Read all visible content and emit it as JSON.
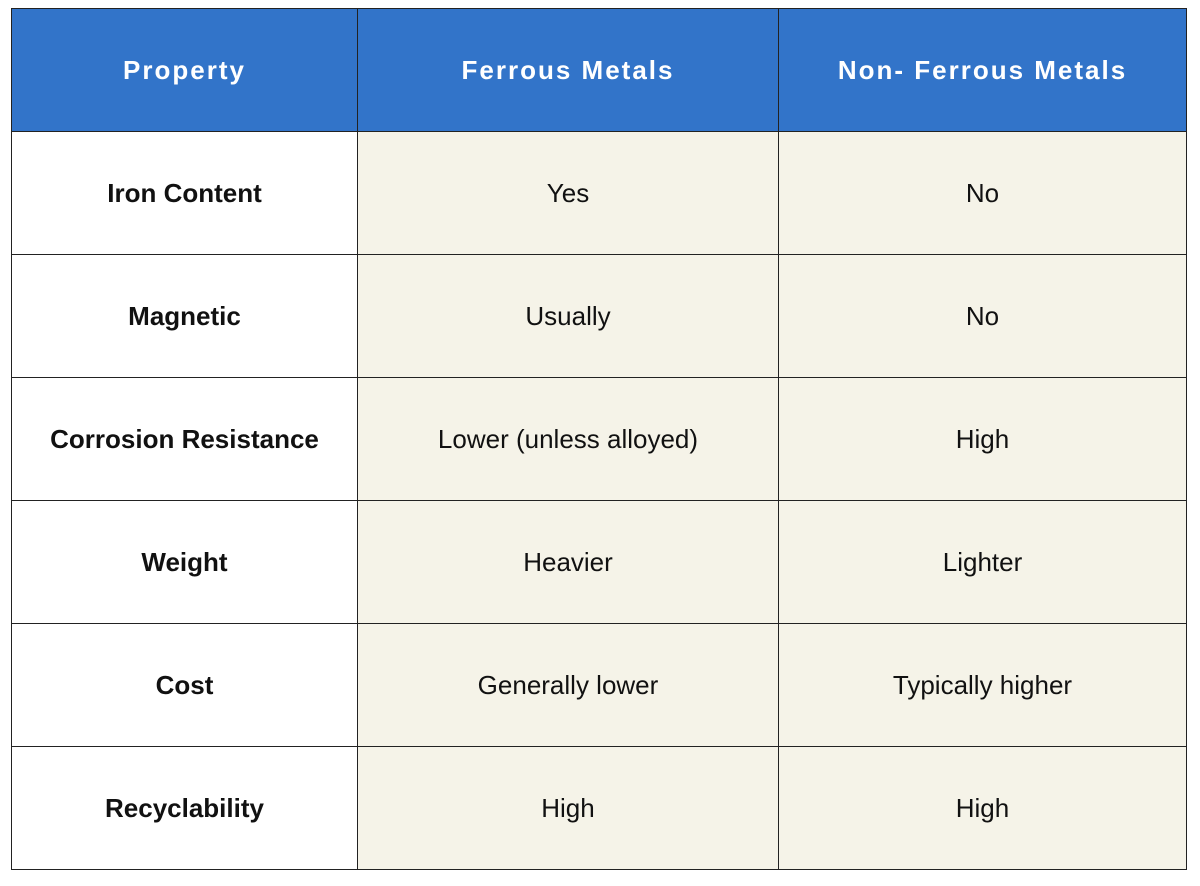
{
  "table": {
    "headers": [
      "Property",
      "Ferrous Metals",
      "Non- Ferrous Metals"
    ],
    "rows": [
      [
        "Iron Content",
        "Yes",
        "No"
      ],
      [
        "Magnetic",
        "Usually",
        "No"
      ],
      [
        "Corrosion Resistance",
        "Lower (unless alloyed)",
        "High"
      ],
      [
        "Weight",
        "Heavier",
        "Lighter"
      ],
      [
        "Cost",
        "Generally lower",
        "Typically higher"
      ],
      [
        "Recyclability",
        "High",
        "High"
      ]
    ]
  }
}
